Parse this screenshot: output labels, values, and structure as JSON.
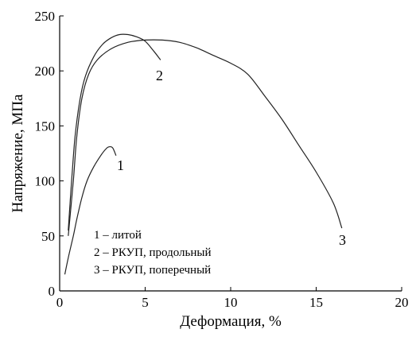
{
  "chart_data": {
    "type": "line",
    "xlabel": "Деформация, %",
    "ylabel": "Напряжение, МПа",
    "xlim": [
      0,
      20
    ],
    "ylim": [
      0,
      250
    ],
    "xticks": [
      0,
      5,
      10,
      15,
      20
    ],
    "yticks": [
      0,
      50,
      100,
      150,
      200,
      250
    ],
    "grid": false,
    "legend_placement": "bottom-left",
    "legend": [
      "1 – литой",
      "2 – РКУП, продольный",
      "3 – РКУП, поперечный"
    ],
    "series": [
      {
        "name": "1",
        "x": [
          0.3,
          0.5,
          0.8,
          1.0,
          1.3,
          1.6,
          2.0,
          2.4,
          2.7,
          2.9,
          3.1,
          3.3
        ],
        "y": [
          15,
          30,
          50,
          65,
          85,
          100,
          113,
          123,
          129,
          131,
          130,
          123
        ]
      },
      {
        "name": "2",
        "x": [
          0.5,
          0.7,
          0.9,
          1.2,
          1.5,
          2.0,
          2.5,
          3.0,
          3.5,
          4.0,
          4.5,
          5.0,
          5.5,
          5.9
        ],
        "y": [
          55,
          100,
          140,
          175,
          195,
          213,
          224,
          230,
          233,
          233,
          231,
          227,
          218,
          210
        ]
      },
      {
        "name": "3",
        "x": [
          0.5,
          0.8,
          1.0,
          1.3,
          1.7,
          2.2,
          3.0,
          4.0,
          5.0,
          6.0,
          7.0,
          8.0,
          9.0,
          10.0,
          11.0,
          12.0,
          13.0,
          14.0,
          15.0,
          16.0,
          16.5
        ],
        "y": [
          50,
          100,
          140,
          175,
          197,
          210,
          220,
          226,
          228,
          228,
          226,
          221,
          214,
          207,
          197,
          177,
          156,
          132,
          108,
          80,
          57
        ]
      }
    ]
  }
}
